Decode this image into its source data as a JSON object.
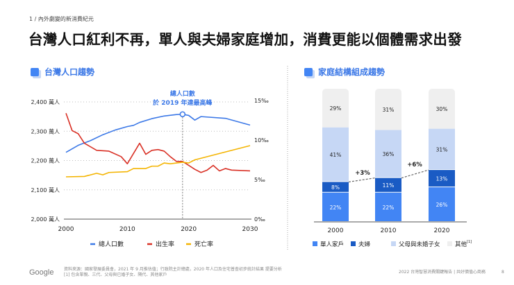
{
  "header": {
    "kicker": "1 / 內外劇變的新消費紀元",
    "title": "台灣人口紅利不再，單人與夫婦家庭增加，消費更能以個體需求出發"
  },
  "left_section": {
    "title": "台灣人口趨勢"
  },
  "right_section": {
    "title": "家庭結構組成趨勢"
  },
  "colors": {
    "population": "#3b78e7",
    "birth": "#d93025",
    "death": "#f4b400",
    "single": "#4285f4",
    "couple": "#1a5bc4",
    "parents": "#c6d7f5",
    "other": "#efefef"
  },
  "chart_data": [
    {
      "type": "line",
      "x_ticks": [
        "2000",
        "2010",
        "2020",
        "2030"
      ],
      "xlim": [
        2000,
        2030
      ],
      "y_left": {
        "ticks": [
          "2,000 萬人",
          "2,100 萬人",
          "2,200 萬人",
          "2,300 萬人",
          "2,400 萬人"
        ],
        "ylim": [
          2000,
          2400
        ],
        "unit": "萬人"
      },
      "y_right": {
        "ticks": [
          "0‰",
          "5‰",
          "10‰",
          "15‰"
        ],
        "ylim": [
          0,
          15
        ],
        "unit": "‰"
      },
      "grid": true,
      "annotation": {
        "line1": "總人口數",
        "line2": "於 2019 年達最高峰",
        "x": 2019
      },
      "legend_position": "bottom",
      "series": [
        {
          "name": "總人口數",
          "axis": "left",
          "color": "#3b78e7",
          "x": [
            2000,
            2002,
            2004,
            2006,
            2008,
            2010,
            2011,
            2012,
            2014,
            2016,
            2018,
            2019,
            2020,
            2021,
            2022,
            2026,
            2030
          ],
          "y": [
            2228,
            2252,
            2268,
            2288,
            2304,
            2316,
            2320,
            2330,
            2343,
            2352,
            2357,
            2358,
            2354,
            2338,
            2350,
            2344,
            2321
          ]
        },
        {
          "name": "出生率",
          "axis": "right",
          "color": "#d93025",
          "x": [
            2000,
            2001,
            2002,
            2003,
            2005,
            2007,
            2009,
            2010,
            2012,
            2013,
            2014,
            2015,
            2016,
            2017,
            2018,
            2019,
            2020,
            2021,
            2022,
            2023,
            2024,
            2025,
            2026,
            2027,
            2030
          ],
          "y": [
            13.4,
            11.2,
            10.8,
            9.6,
            8.7,
            8.6,
            7.9,
            7.0,
            9.6,
            8.2,
            8.7,
            8.8,
            8.6,
            7.9,
            7.3,
            7.3,
            6.8,
            6.3,
            5.9,
            6.2,
            6.8,
            6.1,
            6.4,
            6.2,
            6.1
          ]
        },
        {
          "name": "死亡率",
          "axis": "right",
          "color": "#f4b400",
          "x": [
            2000,
            2003,
            2005,
            2006,
            2007,
            2010,
            2011,
            2013,
            2014,
            2015,
            2016,
            2017,
            2019,
            2020,
            2021,
            2030
          ],
          "y": [
            5.35,
            5.4,
            5.8,
            5.6,
            5.9,
            6.0,
            6.4,
            6.4,
            6.7,
            6.7,
            7.1,
            7.0,
            7.2,
            7.1,
            7.5,
            9.3
          ]
        }
      ]
    },
    {
      "type": "bar",
      "stacked": true,
      "categories": [
        "2000",
        "2010",
        "2020"
      ],
      "series": [
        {
          "name": "單人家戶",
          "values": [
            22,
            22,
            26
          ],
          "labels": [
            "22%",
            "22%",
            "26%"
          ]
        },
        {
          "name": "夫婦",
          "values": [
            8,
            11,
            13
          ],
          "labels": [
            "8%",
            "11%",
            "13%"
          ]
        },
        {
          "name": "父母與未婚子女",
          "values": [
            41,
            36,
            31
          ],
          "labels": [
            "41%",
            "36%",
            "31%"
          ]
        },
        {
          "name": "其他",
          "note": "[1]",
          "values": [
            29,
            31,
            30
          ],
          "labels": [
            "29%",
            "31%",
            "30%"
          ]
        }
      ],
      "annotations": [
        "+3%",
        "+6%"
      ],
      "legend_position": "bottom"
    }
  ],
  "footer": {
    "logo": "Google",
    "source": "資料來源：國家發展委員會，2021 年 9 月推估值；行政院主計總處，2020 年人口及住宅普查初步統計結果 提要分析",
    "note": "[1] 包含單親、三代、父母與已婚子女、隔代、其他家戶",
    "report": "2022 台灣智慧消費關鍵報告 | 共好價值心商務",
    "page": "8"
  }
}
